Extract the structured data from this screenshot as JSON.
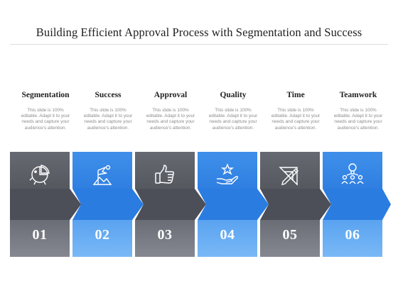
{
  "title": "Building Efficient Approval Process with Segmentation and Success",
  "steps": [
    {
      "heading": "Segmentation",
      "desc": "This slide is 100% editable. Adapt it to your needs and capture your audience's attention.",
      "number": "01",
      "icon": "pie-chart-icon",
      "theme": "gray"
    },
    {
      "heading": "Success",
      "desc": "This slide is 100% editable. Adapt it to your needs and capture your audience's attention.",
      "number": "02",
      "icon": "flag-mountain-icon",
      "theme": "blue"
    },
    {
      "heading": "Approval",
      "desc": "This slide is 100% editable. Adapt it to your needs and capture your audience's attention.",
      "number": "03",
      "icon": "thumbs-up-icon",
      "theme": "gray"
    },
    {
      "heading": "Quality",
      "desc": "This slide is 100% editable. Adapt it to your needs and capture your audience's attention.",
      "number": "04",
      "icon": "hand-star-icon",
      "theme": "blue"
    },
    {
      "heading": "Time",
      "desc": "This slide is 100% editable. Adapt it to your needs and capture your audience's attention.",
      "number": "05",
      "icon": "pencil-ruler-icon",
      "theme": "gray"
    },
    {
      "heading": "Teamwork",
      "desc": "This slide is 100% editable. Adapt it to your needs and capture your audience's attention.",
      "number": "06",
      "icon": "team-idea-icon",
      "theme": "blue"
    }
  ],
  "colors": {
    "gray_top": "#5d6068",
    "gray_mid": "#4f525a",
    "gray_bottom": "#7a7d86",
    "blue_top": "#3d8ee9",
    "blue_mid": "#2f7ee0",
    "blue_bottom": "#6fb2f5"
  }
}
